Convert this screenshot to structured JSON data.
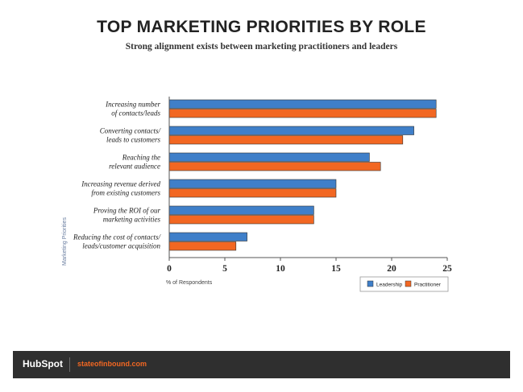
{
  "chart_data": {
    "type": "bar",
    "orientation": "horizontal",
    "title": "TOP MARKETING PRIORITIES BY ROLE",
    "subtitle": "Strong alignment exists between marketing practitioners and leaders",
    "xlabel": "% of Respondents",
    "ylabel": "Marketing Priorities",
    "xlim": [
      0,
      25
    ],
    "xticks": [
      "0",
      "5",
      "10",
      "15",
      "20",
      "25"
    ],
    "categories": [
      [
        "Increasing number",
        "of contacts/leads"
      ],
      [
        "Converting contacts/",
        "leads to customers"
      ],
      [
        "Reaching the",
        "relevant audience"
      ],
      [
        "Increasing revenue derived",
        "from existing customers"
      ],
      [
        "Proving the ROI of our",
        "marketing activities"
      ],
      [
        "Reducing the cost of contacts/",
        "leads/customer acquisition"
      ]
    ],
    "series": [
      {
        "name": "Leadership",
        "color": "#3f7fc9",
        "values": [
          24,
          22,
          18,
          15,
          13,
          7
        ]
      },
      {
        "name": "Practitioner",
        "color": "#f26722",
        "values": [
          24,
          21,
          19,
          15,
          13,
          6
        ]
      }
    ],
    "grid": false,
    "legend_position": "bottom-right"
  },
  "footer": {
    "logo_text": "HubSpot",
    "url": "stateofinbound.com"
  }
}
